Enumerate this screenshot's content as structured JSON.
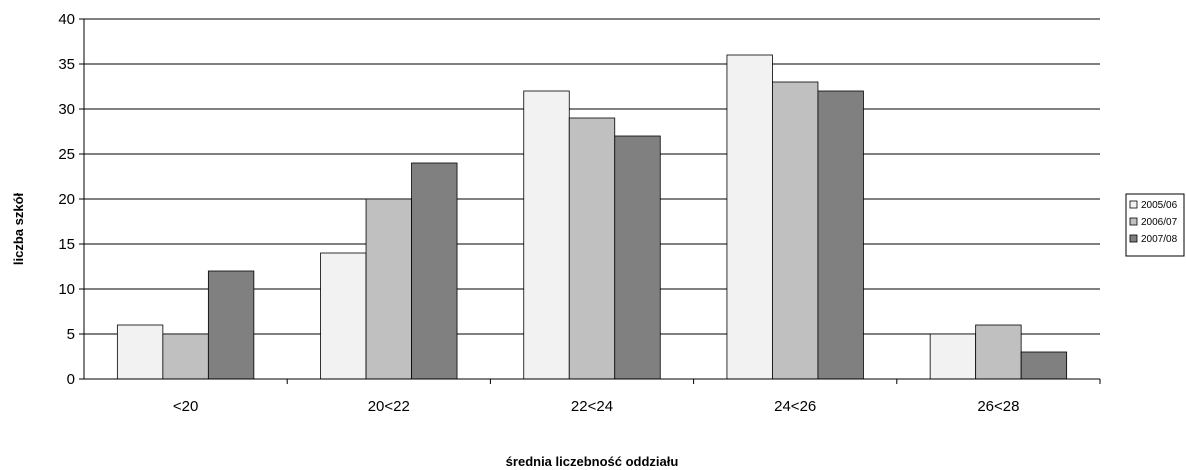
{
  "chart_data": {
    "type": "bar",
    "title": "",
    "xlabel": "średnia liczebność oddziału",
    "ylabel": "liczba szkół",
    "categories": [
      "<20",
      "20<22",
      "22<24",
      "24<26",
      "26<28"
    ],
    "series": [
      {
        "name": "2005/06",
        "values": [
          6,
          14,
          32,
          36,
          5
        ],
        "color": "#f2f2f2"
      },
      {
        "name": "2006/07",
        "values": [
          5,
          20,
          29,
          33,
          6
        ],
        "color": "#c0c0c0"
      },
      {
        "name": "2007/08",
        "values": [
          12,
          24,
          27,
          32,
          3
        ],
        "color": "#808080"
      }
    ],
    "ylim": [
      0,
      40
    ],
    "yticks": [
      0,
      5,
      10,
      15,
      20,
      25,
      30,
      35,
      40
    ],
    "grid": true,
    "legend": "right"
  }
}
